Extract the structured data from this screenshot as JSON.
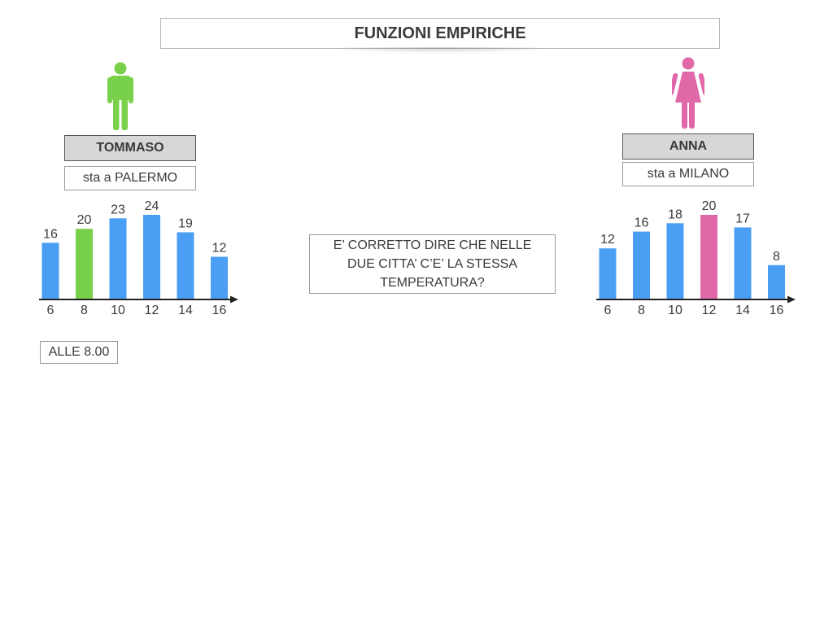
{
  "title": "FUNZIONI EMPIRICHE",
  "people": [
    {
      "name": "TOMMASO",
      "city": "sta a PALERMO",
      "icon": "male-person-icon",
      "color": "#79d04b"
    },
    {
      "name": "ANNA",
      "city": "sta a MILANO",
      "icon": "female-person-icon",
      "color": "#e068a8"
    }
  ],
  "question": "E’ CORRETTO DIRE CHE NELLE DUE CITTA’ C’E’ LA STESSA TEMPERATURA?",
  "time_label": "ALLE 8.00",
  "colors": {
    "bar": "#4a9ff5",
    "axis": "#222222"
  },
  "chart_data": [
    {
      "type": "bar",
      "categories": [
        "6",
        "8",
        "10",
        "12",
        "14",
        "16"
      ],
      "values": [
        16,
        20,
        23,
        24,
        19,
        12
      ],
      "highlight_index": 1,
      "highlight_color": "#79d04b",
      "ylim": [
        0,
        24
      ]
    },
    {
      "type": "bar",
      "categories": [
        "6",
        "8",
        "10",
        "12",
        "14",
        "16"
      ],
      "values": [
        12,
        16,
        18,
        20,
        17,
        8
      ],
      "highlight_index": 3,
      "highlight_color": "#e068a8",
      "ylim": [
        0,
        20
      ]
    }
  ]
}
